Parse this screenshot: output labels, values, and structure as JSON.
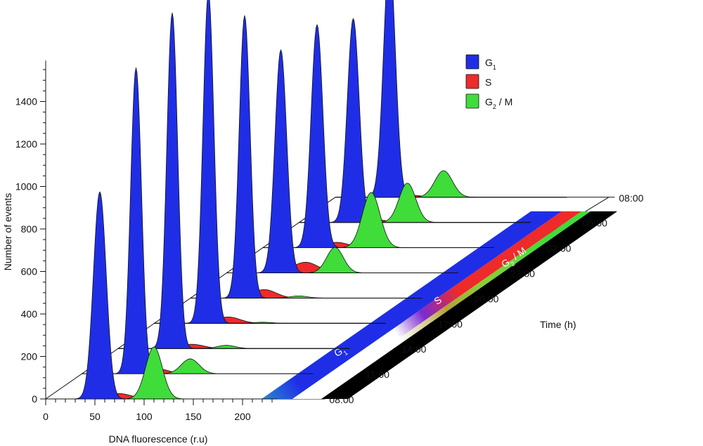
{
  "chart_data": {
    "type": "area",
    "xlabel": "DNA fluorescence (r.u)",
    "ylabel": "Number of events",
    "zlabel": "Time (h)",
    "xlim": [
      0,
      235
    ],
    "ylim": [
      0,
      1500
    ],
    "x_ticks": [
      0,
      50,
      100,
      150,
      200
    ],
    "y_ticks": [
      0,
      200,
      400,
      600,
      800,
      1000,
      1200,
      1400
    ],
    "time_labels": [
      "08:00",
      "11:00",
      "14:00",
      "17:00",
      "20:00",
      "23:00",
      "02:00",
      "05:00",
      "08:00"
    ],
    "colors": {
      "G1": "#1f2ee6",
      "S": "#ee2a2a",
      "G2M": "#3fdc3a",
      "band_black": "#000000"
    },
    "legend": [
      {
        "key": "G1",
        "label": "G",
        "sub": "1",
        "suffix": ""
      },
      {
        "key": "S",
        "label": "S",
        "sub": "",
        "suffix": ""
      },
      {
        "key": "G2M",
        "label": "G",
        "sub": "2",
        "suffix": " / M"
      }
    ],
    "band_labels": [
      {
        "label": "G",
        "sub": "1",
        "suffix": ""
      },
      {
        "label": "S",
        "sub": "",
        "suffix": ""
      },
      {
        "label": "G",
        "sub": "2",
        "suffix": " / M"
      }
    ],
    "series": [
      {
        "time_index": 0,
        "G1": {
          "center": 55,
          "height": 975,
          "sigma": 6.5
        },
        "S": {
          "center": 75,
          "height": 25,
          "sigma": 12
        },
        "G2M": {
          "center": 110,
          "height": 245,
          "sigma": 8.5
        }
      },
      {
        "time_index": 1,
        "G1": {
          "center": 55,
          "height": 1440,
          "sigma": 5.5
        },
        "S": {
          "center": 75,
          "height": 25,
          "sigma": 12
        },
        "G2M": {
          "center": 110,
          "height": 70,
          "sigma": 9
        }
      },
      {
        "time_index": 2,
        "G1": {
          "center": 55,
          "height": 1580,
          "sigma": 5.5
        },
        "S": {
          "center": 75,
          "height": 20,
          "sigma": 12
        },
        "G2M": {
          "center": 110,
          "height": 15,
          "sigma": 9
        }
      },
      {
        "time_index": 3,
        "G1": {
          "center": 55,
          "height": 1560,
          "sigma": 5.5
        },
        "S": {
          "center": 75,
          "height": 30,
          "sigma": 12
        },
        "G2M": {
          "center": 110,
          "height": 5,
          "sigma": 9
        }
      },
      {
        "time_index": 4,
        "G1": {
          "center": 55,
          "height": 1330,
          "sigma": 5.5
        },
        "S": {
          "center": 75,
          "height": 40,
          "sigma": 12
        },
        "G2M": {
          "center": 110,
          "height": 10,
          "sigma": 9
        }
      },
      {
        "time_index": 5,
        "G1": {
          "center": 55,
          "height": 1050,
          "sigma": 6
        },
        "S": {
          "center": 80,
          "height": 50,
          "sigma": 13
        },
        "G2M": {
          "center": 110,
          "height": 120,
          "sigma": 8.5
        }
      },
      {
        "time_index": 6,
        "G1": {
          "center": 55,
          "height": 1050,
          "sigma": 6
        },
        "S": {
          "center": 75,
          "height": 25,
          "sigma": 12
        },
        "G2M": {
          "center": 110,
          "height": 260,
          "sigma": 9
        }
      },
      {
        "time_index": 7,
        "G1": {
          "center": 55,
          "height": 960,
          "sigma": 6
        },
        "S": {
          "center": 75,
          "height": 15,
          "sigma": 12
        },
        "G2M": {
          "center": 110,
          "height": 185,
          "sigma": 8.5
        }
      },
      {
        "time_index": 8,
        "G1": {
          "center": 55,
          "height": 1140,
          "sigma": 6
        },
        "S": {
          "center": 75,
          "height": 10,
          "sigma": 12
        },
        "G2M": {
          "center": 110,
          "height": 125,
          "sigma": 9
        }
      }
    ]
  }
}
